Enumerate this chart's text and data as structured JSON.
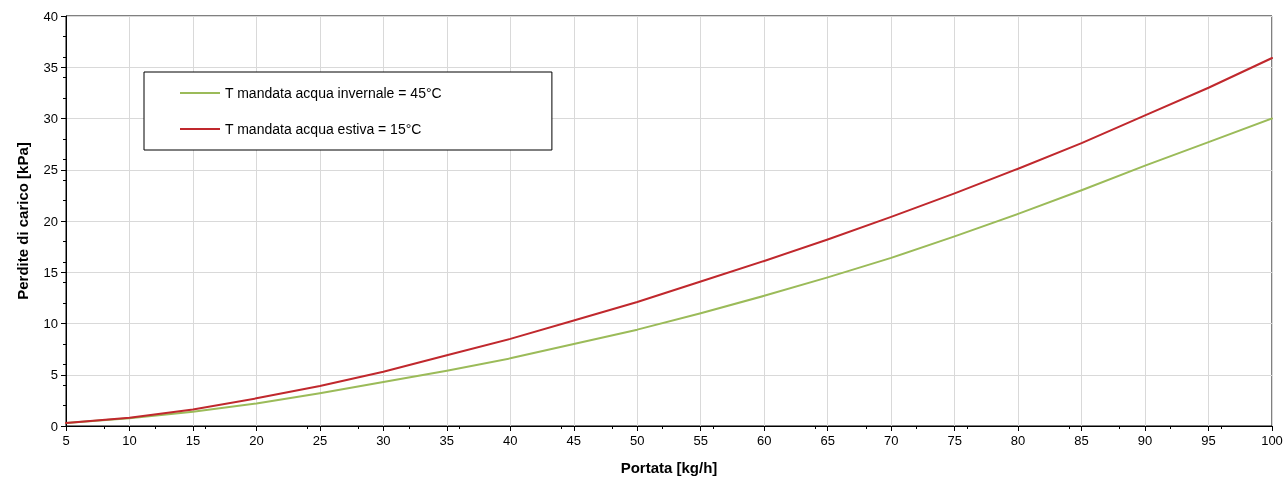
{
  "chart_data": {
    "type": "line",
    "xlabel": "Portata [kg/h]",
    "ylabel": "Perdite di carico [kPa]",
    "x": [
      5,
      10,
      15,
      20,
      25,
      30,
      35,
      40,
      45,
      50,
      55,
      60,
      65,
      70,
      75,
      80,
      85,
      90,
      95,
      100
    ],
    "series": [
      {
        "name": "T mandata acqua invernale = 45°C",
        "color": "#9bbb59",
        "values": [
          0.3,
          0.75,
          1.4,
          2.2,
          3.2,
          4.3,
          5.4,
          6.6,
          8.0,
          9.4,
          11.0,
          12.7,
          14.5,
          16.4,
          18.5,
          20.7,
          23.0,
          25.4,
          27.7,
          30.0
        ]
      },
      {
        "name": "T mandata acqua estiva = 15°C",
        "color": "#c0282d",
        "values": [
          0.3,
          0.8,
          1.6,
          2.7,
          3.9,
          5.3,
          6.9,
          8.5,
          10.3,
          12.1,
          14.1,
          16.1,
          18.2,
          20.4,
          22.7,
          25.1,
          27.6,
          30.3,
          33.0,
          35.9
        ]
      }
    ],
    "xlim": [
      5,
      100
    ],
    "xticks": [
      5,
      10,
      15,
      20,
      25,
      30,
      35,
      40,
      45,
      50,
      55,
      60,
      65,
      70,
      75,
      80,
      85,
      90,
      95,
      100
    ],
    "ylim": [
      0,
      40
    ],
    "yticks": [
      0,
      5,
      10,
      15,
      20,
      25,
      30,
      35,
      40
    ],
    "grid": true,
    "legend": "top left",
    "marker": "none",
    "line_style": "solid"
  }
}
